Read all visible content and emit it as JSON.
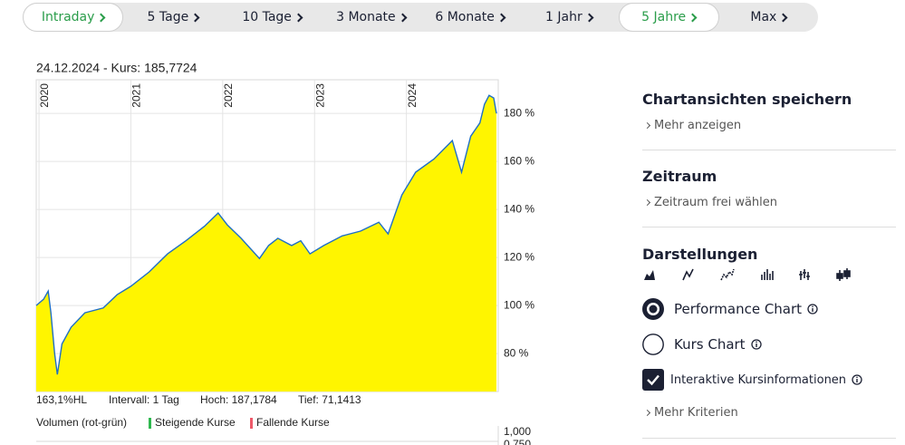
{
  "tabs": [
    {
      "label": "Intraday",
      "active": true
    },
    {
      "label": "5 Tage",
      "active": false
    },
    {
      "label": "10 Tage",
      "active": false
    },
    {
      "label": "3 Monate",
      "active": false
    },
    {
      "label": "6 Monate",
      "active": false
    },
    {
      "label": "1 Jahr",
      "active": false
    },
    {
      "label": "5 Jahre",
      "active": true
    },
    {
      "label": "Max",
      "active": false
    }
  ],
  "chart_data": {
    "type": "area",
    "title": "24.12.2024 - Kurs: 185,7724",
    "x": [
      2019.97,
      2020.05,
      2020.1,
      2020.13,
      2020.17,
      2020.2,
      2020.25,
      2020.35,
      2020.5,
      2020.7,
      2020.85,
      2021.0,
      2021.2,
      2021.4,
      2021.6,
      2021.8,
      2021.95,
      2022.05,
      2022.2,
      2022.4,
      2022.5,
      2022.6,
      2022.75,
      2022.85,
      2022.95,
      2023.1,
      2023.3,
      2023.5,
      2023.7,
      2023.8,
      2023.95,
      2024.1,
      2024.3,
      2024.5,
      2024.6,
      2024.7,
      2024.8,
      2024.85,
      2024.9,
      2024.95,
      2024.98
    ],
    "series": [
      {
        "color": "#1f6fc5",
        "fill": "#fff500",
        "values": [
          100,
          102.6,
          106,
          97,
          80,
          71.3,
          84,
          91,
          97,
          99,
          104.5,
          108,
          114,
          121.5,
          127,
          133,
          138.5,
          133.6,
          128,
          119.6,
          125,
          128,
          125,
          127,
          121.5,
          125,
          129,
          131,
          134.7,
          129.8,
          146,
          155.5,
          161,
          168.7,
          155.5,
          170.5,
          176,
          183.8,
          187.5,
          186.4,
          180
        ]
      }
    ],
    "xlim": [
      2019.97,
      2024.98
    ],
    "ylim": [
      64.2,
      194
    ],
    "xticks": [
      2020,
      2021,
      2022,
      2023,
      2024
    ],
    "yticks": [
      {
        "value": 80,
        "label": "80 %"
      },
      {
        "value": 100,
        "label": "100 %"
      },
      {
        "value": 120,
        "label": "120 %"
      },
      {
        "value": 140,
        "label": "140 %"
      },
      {
        "value": 160,
        "label": "160 %"
      },
      {
        "value": 180,
        "label": "180 %"
      }
    ],
    "grid": true
  },
  "stats": [
    "163,1%HL",
    "Intervall: 1 Tag",
    "Hoch: 187,1784",
    "Tief: 71,1413"
  ],
  "volume": {
    "label": "Volumen (rot-grün)",
    "legend": [
      {
        "name": "Steigende Kurse",
        "color": "#2fb84f"
      },
      {
        "name": "Fallende Kurse",
        "color": "#ee5a6a"
      }
    ],
    "ticks": [
      "1,000",
      "0,750"
    ]
  },
  "sidebar": {
    "sections": [
      {
        "title": "Chartansichten speichern",
        "link": "Mehr anzeigen"
      },
      {
        "title": "Zeitraum",
        "link": "Zeitraum frei wählen"
      }
    ],
    "display": {
      "title": "Darstellungen",
      "options": [
        {
          "label": "Performance Chart",
          "selected": true
        },
        {
          "label": "Kurs Chart",
          "selected": false
        }
      ],
      "checkbox": {
        "label": "Interaktive Kursinformationen",
        "checked": true
      },
      "link": "Mehr Kriterien"
    }
  }
}
